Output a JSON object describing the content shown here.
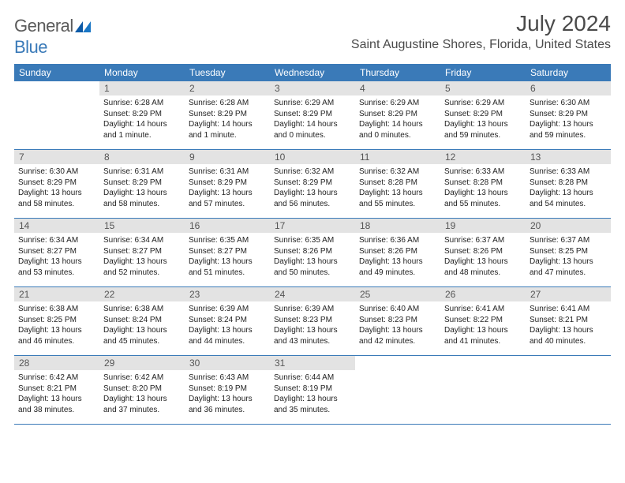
{
  "logo": {
    "text1": "General",
    "text2": "Blue"
  },
  "title": "July 2024",
  "location": "Saint Augustine Shores, Florida, United States",
  "colors": {
    "header_bg": "#3a7ab8",
    "daynum_bg": "#e3e3e3",
    "text": "#222222",
    "border": "#3a7ab8"
  },
  "day_names": [
    "Sunday",
    "Monday",
    "Tuesday",
    "Wednesday",
    "Thursday",
    "Friday",
    "Saturday"
  ],
  "weeks": [
    [
      null,
      {
        "n": "1",
        "sr": "Sunrise: 6:28 AM",
        "ss": "Sunset: 8:29 PM",
        "d1": "Daylight: 14 hours",
        "d2": "and 1 minute."
      },
      {
        "n": "2",
        "sr": "Sunrise: 6:28 AM",
        "ss": "Sunset: 8:29 PM",
        "d1": "Daylight: 14 hours",
        "d2": "and 1 minute."
      },
      {
        "n": "3",
        "sr": "Sunrise: 6:29 AM",
        "ss": "Sunset: 8:29 PM",
        "d1": "Daylight: 14 hours",
        "d2": "and 0 minutes."
      },
      {
        "n": "4",
        "sr": "Sunrise: 6:29 AM",
        "ss": "Sunset: 8:29 PM",
        "d1": "Daylight: 14 hours",
        "d2": "and 0 minutes."
      },
      {
        "n": "5",
        "sr": "Sunrise: 6:29 AM",
        "ss": "Sunset: 8:29 PM",
        "d1": "Daylight: 13 hours",
        "d2": "and 59 minutes."
      },
      {
        "n": "6",
        "sr": "Sunrise: 6:30 AM",
        "ss": "Sunset: 8:29 PM",
        "d1": "Daylight: 13 hours",
        "d2": "and 59 minutes."
      }
    ],
    [
      {
        "n": "7",
        "sr": "Sunrise: 6:30 AM",
        "ss": "Sunset: 8:29 PM",
        "d1": "Daylight: 13 hours",
        "d2": "and 58 minutes."
      },
      {
        "n": "8",
        "sr": "Sunrise: 6:31 AM",
        "ss": "Sunset: 8:29 PM",
        "d1": "Daylight: 13 hours",
        "d2": "and 58 minutes."
      },
      {
        "n": "9",
        "sr": "Sunrise: 6:31 AM",
        "ss": "Sunset: 8:29 PM",
        "d1": "Daylight: 13 hours",
        "d2": "and 57 minutes."
      },
      {
        "n": "10",
        "sr": "Sunrise: 6:32 AM",
        "ss": "Sunset: 8:29 PM",
        "d1": "Daylight: 13 hours",
        "d2": "and 56 minutes."
      },
      {
        "n": "11",
        "sr": "Sunrise: 6:32 AM",
        "ss": "Sunset: 8:28 PM",
        "d1": "Daylight: 13 hours",
        "d2": "and 55 minutes."
      },
      {
        "n": "12",
        "sr": "Sunrise: 6:33 AM",
        "ss": "Sunset: 8:28 PM",
        "d1": "Daylight: 13 hours",
        "d2": "and 55 minutes."
      },
      {
        "n": "13",
        "sr": "Sunrise: 6:33 AM",
        "ss": "Sunset: 8:28 PM",
        "d1": "Daylight: 13 hours",
        "d2": "and 54 minutes."
      }
    ],
    [
      {
        "n": "14",
        "sr": "Sunrise: 6:34 AM",
        "ss": "Sunset: 8:27 PM",
        "d1": "Daylight: 13 hours",
        "d2": "and 53 minutes."
      },
      {
        "n": "15",
        "sr": "Sunrise: 6:34 AM",
        "ss": "Sunset: 8:27 PM",
        "d1": "Daylight: 13 hours",
        "d2": "and 52 minutes."
      },
      {
        "n": "16",
        "sr": "Sunrise: 6:35 AM",
        "ss": "Sunset: 8:27 PM",
        "d1": "Daylight: 13 hours",
        "d2": "and 51 minutes."
      },
      {
        "n": "17",
        "sr": "Sunrise: 6:35 AM",
        "ss": "Sunset: 8:26 PM",
        "d1": "Daylight: 13 hours",
        "d2": "and 50 minutes."
      },
      {
        "n": "18",
        "sr": "Sunrise: 6:36 AM",
        "ss": "Sunset: 8:26 PM",
        "d1": "Daylight: 13 hours",
        "d2": "and 49 minutes."
      },
      {
        "n": "19",
        "sr": "Sunrise: 6:37 AM",
        "ss": "Sunset: 8:26 PM",
        "d1": "Daylight: 13 hours",
        "d2": "and 48 minutes."
      },
      {
        "n": "20",
        "sr": "Sunrise: 6:37 AM",
        "ss": "Sunset: 8:25 PM",
        "d1": "Daylight: 13 hours",
        "d2": "and 47 minutes."
      }
    ],
    [
      {
        "n": "21",
        "sr": "Sunrise: 6:38 AM",
        "ss": "Sunset: 8:25 PM",
        "d1": "Daylight: 13 hours",
        "d2": "and 46 minutes."
      },
      {
        "n": "22",
        "sr": "Sunrise: 6:38 AM",
        "ss": "Sunset: 8:24 PM",
        "d1": "Daylight: 13 hours",
        "d2": "and 45 minutes."
      },
      {
        "n": "23",
        "sr": "Sunrise: 6:39 AM",
        "ss": "Sunset: 8:24 PM",
        "d1": "Daylight: 13 hours",
        "d2": "and 44 minutes."
      },
      {
        "n": "24",
        "sr": "Sunrise: 6:39 AM",
        "ss": "Sunset: 8:23 PM",
        "d1": "Daylight: 13 hours",
        "d2": "and 43 minutes."
      },
      {
        "n": "25",
        "sr": "Sunrise: 6:40 AM",
        "ss": "Sunset: 8:23 PM",
        "d1": "Daylight: 13 hours",
        "d2": "and 42 minutes."
      },
      {
        "n": "26",
        "sr": "Sunrise: 6:41 AM",
        "ss": "Sunset: 8:22 PM",
        "d1": "Daylight: 13 hours",
        "d2": "and 41 minutes."
      },
      {
        "n": "27",
        "sr": "Sunrise: 6:41 AM",
        "ss": "Sunset: 8:21 PM",
        "d1": "Daylight: 13 hours",
        "d2": "and 40 minutes."
      }
    ],
    [
      {
        "n": "28",
        "sr": "Sunrise: 6:42 AM",
        "ss": "Sunset: 8:21 PM",
        "d1": "Daylight: 13 hours",
        "d2": "and 38 minutes."
      },
      {
        "n": "29",
        "sr": "Sunrise: 6:42 AM",
        "ss": "Sunset: 8:20 PM",
        "d1": "Daylight: 13 hours",
        "d2": "and 37 minutes."
      },
      {
        "n": "30",
        "sr": "Sunrise: 6:43 AM",
        "ss": "Sunset: 8:19 PM",
        "d1": "Daylight: 13 hours",
        "d2": "and 36 minutes."
      },
      {
        "n": "31",
        "sr": "Sunrise: 6:44 AM",
        "ss": "Sunset: 8:19 PM",
        "d1": "Daylight: 13 hours",
        "d2": "and 35 minutes."
      },
      null,
      null,
      null
    ]
  ]
}
